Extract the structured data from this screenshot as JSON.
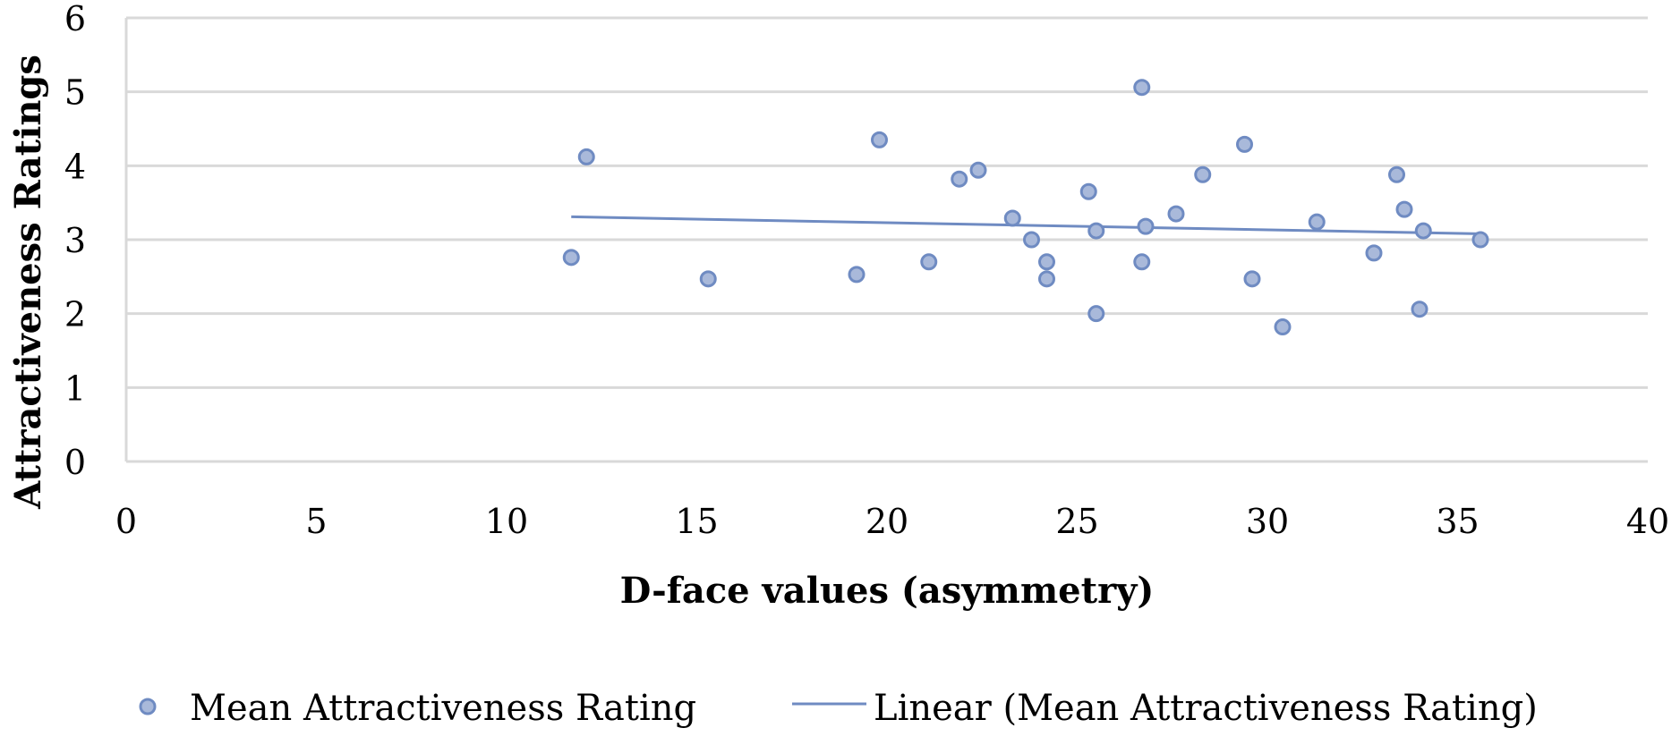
{
  "chart_data": {
    "type": "scatter",
    "title": "",
    "xlabel": "D-face values (asymmetry)",
    "ylabel": "Attractiveness Ratings",
    "xlim": [
      0,
      40
    ],
    "ylim": [
      0,
      6
    ],
    "xticks": [
      0,
      5,
      10,
      15,
      20,
      25,
      30,
      35,
      40
    ],
    "yticks": [
      0,
      1,
      2,
      3,
      4,
      5,
      6
    ],
    "grid": "horizontal",
    "legend_position": "bottom",
    "colors": {
      "marker_fill": "#a9b9da",
      "marker_stroke": "#6f8bc2",
      "trendline": "#6f8bc2",
      "gridline": "#d9d9d9",
      "axis": "#d9d9d9"
    },
    "series": [
      {
        "name": "Mean Attractiveness Rating",
        "type": "scatter",
        "points": [
          [
            11.7,
            2.76
          ],
          [
            12.1,
            4.12
          ],
          [
            15.3,
            2.47
          ],
          [
            19.2,
            2.53
          ],
          [
            19.8,
            4.35
          ],
          [
            21.1,
            2.7
          ],
          [
            21.9,
            3.82
          ],
          [
            22.4,
            3.94
          ],
          [
            23.3,
            3.29
          ],
          [
            23.8,
            3.0
          ],
          [
            24.2,
            2.7
          ],
          [
            24.2,
            2.47
          ],
          [
            25.3,
            3.65
          ],
          [
            25.5,
            3.12
          ],
          [
            25.5,
            2.0
          ],
          [
            26.7,
            5.06
          ],
          [
            26.7,
            2.7
          ],
          [
            26.8,
            3.18
          ],
          [
            27.6,
            3.35
          ],
          [
            28.3,
            3.88
          ],
          [
            29.4,
            4.29
          ],
          [
            29.6,
            2.47
          ],
          [
            30.4,
            1.82
          ],
          [
            31.3,
            3.24
          ],
          [
            32.8,
            2.82
          ],
          [
            33.4,
            3.88
          ],
          [
            33.6,
            3.41
          ],
          [
            34.0,
            2.06
          ],
          [
            34.1,
            3.12
          ],
          [
            35.6,
            3.0
          ]
        ]
      },
      {
        "name": "Linear (Mean Attractiveness Rating)",
        "type": "line",
        "points": [
          [
            11.7,
            3.31
          ],
          [
            35.6,
            3.08
          ]
        ]
      }
    ],
    "legend": [
      "Mean Attractiveness Rating",
      "Linear (Mean Attractiveness Rating)"
    ]
  }
}
